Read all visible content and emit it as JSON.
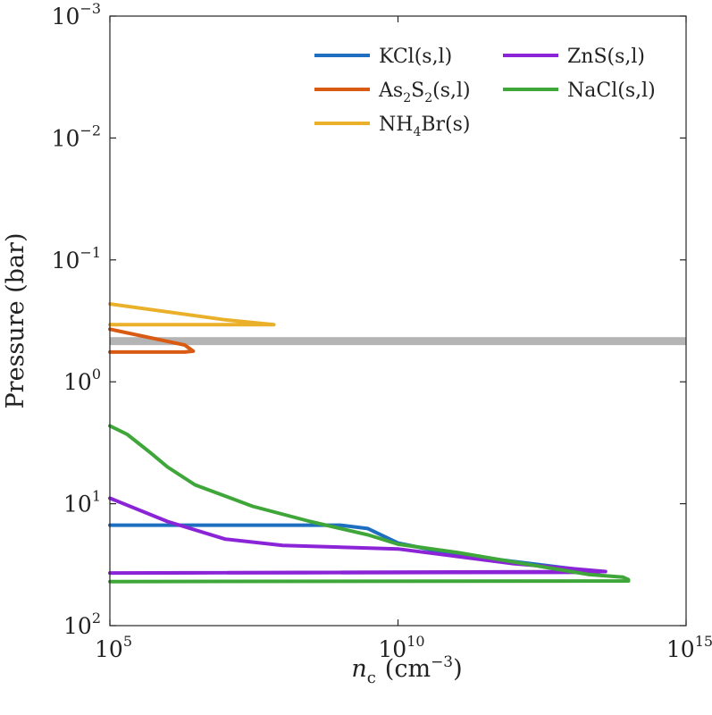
{
  "chart_data": {
    "type": "line",
    "title": "",
    "xlabel": {
      "symbol": "n",
      "subscript": "c",
      "unit_base": "(cm",
      "unit_exp": "−3",
      "unit_close": ")"
    },
    "ylabel": "Pressure (bar)",
    "x_scale": "log",
    "y_scale": "log",
    "y_reversed": true,
    "xlim": [
      100000,
      1000000000000000
    ],
    "ylim": [
      0.001,
      100
    ],
    "x_ticks": [
      {
        "value": 100000,
        "base": "10",
        "exp": "5"
      },
      {
        "value": 10000000000,
        "base": "10",
        "exp": "10"
      },
      {
        "value": 1000000000000000,
        "base": "10",
        "exp": "15"
      }
    ],
    "y_ticks": [
      {
        "value": 0.001,
        "base": "10",
        "exp": "−3"
      },
      {
        "value": 0.01,
        "base": "10",
        "exp": "−2"
      },
      {
        "value": 0.1,
        "base": "10",
        "exp": "−1"
      },
      {
        "value": 1,
        "base": "10",
        "exp": "0"
      },
      {
        "value": 10,
        "base": "10",
        "exp": "1"
      },
      {
        "value": 100,
        "base": "10",
        "exp": "2"
      }
    ],
    "shaded_band": {
      "from": 0.43,
      "to": 0.5,
      "color": "#b4b4b4"
    },
    "legend": {
      "location": "top-right",
      "entries": [
        {
          "name": "KCl(s,l)",
          "color": "#1f6fc0",
          "parts": [
            {
              "t": "KCl(s,l)"
            }
          ]
        },
        {
          "name": "ZnS(s,l)",
          "color": "#8b24d6",
          "parts": [
            {
              "t": "ZnS(s,l)"
            }
          ]
        },
        {
          "name": "As2S2(s,l)",
          "color": "#d95a12",
          "parts": [
            {
              "t": "As"
            },
            {
              "t": "2",
              "sub": true
            },
            {
              "t": "S"
            },
            {
              "t": "2",
              "sub": true
            },
            {
              "t": "(s,l)"
            }
          ]
        },
        {
          "name": "NaCl(s,l)",
          "color": "#3fa63a",
          "parts": [
            {
              "t": "NaCl(s,l)"
            }
          ]
        },
        {
          "name": "NH4Br(s)",
          "color": "#eab02a",
          "parts": [
            {
              "t": "NH"
            },
            {
              "t": "4",
              "sub": true
            },
            {
              "t": "Br(s)"
            }
          ]
        }
      ]
    },
    "series": [
      {
        "name": "NH4Br(s)",
        "color": "#eab02a",
        "points": [
          [
            100000,
            0.23
          ],
          [
            10000000,
            0.31
          ],
          [
            70000000,
            0.34
          ],
          [
            100000,
            0.34
          ]
        ]
      },
      {
        "name": "As2S2(s,l)",
        "color": "#d95a12",
        "points": [
          [
            100000,
            0.37
          ],
          [
            2000000,
            0.5
          ],
          [
            2800000,
            0.56
          ],
          [
            2000000,
            0.57
          ],
          [
            100000,
            0.57
          ]
        ]
      },
      {
        "name": "KCl(s,l)",
        "color": "#1f6fc0",
        "points": [
          [
            100000,
            15
          ],
          [
            1000000000,
            15
          ],
          [
            3000000000,
            16
          ],
          [
            10000000000,
            21
          ],
          [
            40000000000,
            24
          ],
          [
            100000000000,
            26
          ],
          [
            10000000000000,
            34
          ],
          [
            30000000000000,
            38
          ]
        ]
      },
      {
        "name": "ZnS(s,l)",
        "color": "#8b24d6",
        "points": [
          [
            100000,
            9
          ],
          [
            1000000,
            14
          ],
          [
            10000000,
            19.5
          ],
          [
            100000000,
            22
          ],
          [
            10000000000,
            23.5
          ],
          [
            100000000000,
            27
          ],
          [
            1000000000000,
            31
          ],
          [
            10000000000000,
            34
          ],
          [
            40000000000000,
            36
          ],
          [
            100000,
            37
          ],
          [
            30000000000000,
            36.5
          ]
        ]
      },
      {
        "name": "NaCl(s,l)",
        "color": "#3fa63a",
        "points": [
          [
            100000,
            2.3
          ],
          [
            200000,
            2.7
          ],
          [
            500000,
            3.8
          ],
          [
            1000000,
            5
          ],
          [
            3000000,
            7
          ],
          [
            30000000,
            10.5
          ],
          [
            300000000,
            14
          ],
          [
            3000000000,
            18
          ],
          [
            10000000000,
            21.5
          ],
          [
            100000000000,
            25
          ],
          [
            1000000000000,
            30
          ],
          [
            20000000000000,
            38
          ],
          [
            80000000000000,
            40
          ],
          [
            100000000000000,
            42
          ],
          [
            100000000000000,
            43
          ],
          [
            100000,
            43.5
          ]
        ]
      }
    ]
  }
}
